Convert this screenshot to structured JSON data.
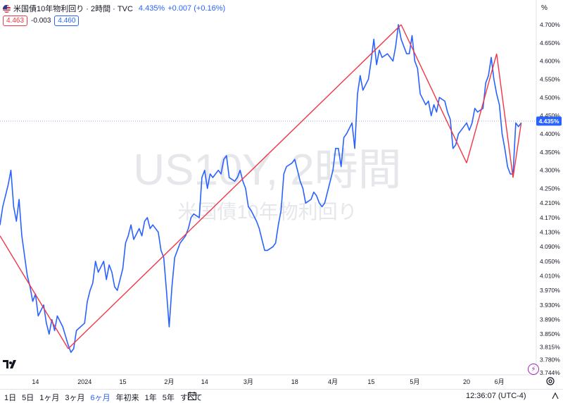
{
  "header": {
    "symbol_title": "米国債10年物利回り · 2時間 · TVC",
    "last": "4.435%",
    "change": "+0.007 (+0.16%)",
    "bid": "4.463",
    "spread": "-0.003",
    "ask": "4.460",
    "unit": "%"
  },
  "watermark": {
    "symbol": "US10Y, 2時間",
    "name": "米国債10年物利回り"
  },
  "colors": {
    "series": "#2962ff",
    "trendline": "#f23645",
    "price_tag": "#2962ff",
    "axis_text": "#131722",
    "watermark": "#e6e7ea"
  },
  "chart_data": {
    "type": "line",
    "y_ticks": [
      "4.700%",
      "4.650%",
      "4.600%",
      "4.550%",
      "4.500%",
      "4.450%",
      "4.400%",
      "4.350%",
      "4.300%",
      "4.250%",
      "4.210%",
      "4.170%",
      "4.130%",
      "4.090%",
      "4.050%",
      "4.010%",
      "3.970%",
      "3.930%",
      "3.890%",
      "3.850%",
      "3.815%",
      "3.780%",
      "3.744%"
    ],
    "y_tick_values": [
      4.7,
      4.65,
      4.6,
      4.55,
      4.5,
      4.45,
      4.4,
      4.35,
      4.3,
      4.25,
      4.21,
      4.17,
      4.13,
      4.09,
      4.05,
      4.01,
      3.97,
      3.93,
      3.89,
      3.85,
      3.815,
      3.78,
      3.744
    ],
    "x_ticks": [
      "14",
      "2024",
      "15",
      "2月",
      "14",
      "3月",
      "18",
      "4月",
      "15",
      "5月",
      "20",
      "6月"
    ],
    "x_tick_dates": [
      "2023-12-14",
      "2024-01-01",
      "2024-01-15",
      "2024-02-01",
      "2024-02-14",
      "2024-03-01",
      "2024-03-18",
      "2024-04-01",
      "2024-04-15",
      "2024-05-01",
      "2024-05-20",
      "2024-06-01"
    ],
    "x_range": [
      "2023-12-01",
      "2024-06-14"
    ],
    "current_value": 4.435,
    "current_label": "4.435%",
    "series": [
      {
        "points": [
          [
            "2023-12-01",
            4.15
          ],
          [
            "2023-12-02",
            4.2
          ],
          [
            "2023-12-04",
            4.26
          ],
          [
            "2023-12-05",
            4.3
          ],
          [
            "2023-12-06",
            4.2
          ],
          [
            "2023-12-07",
            4.16
          ],
          [
            "2023-12-08",
            4.22
          ],
          [
            "2023-12-09",
            4.12
          ],
          [
            "2023-12-11",
            4.01
          ],
          [
            "2023-12-12",
            3.98
          ],
          [
            "2023-12-13",
            3.94
          ],
          [
            "2023-12-14",
            3.96
          ],
          [
            "2023-12-15",
            3.9
          ],
          [
            "2023-12-17",
            3.93
          ],
          [
            "2023-12-18",
            3.88
          ],
          [
            "2023-12-19",
            3.85
          ],
          [
            "2023-12-20",
            3.89
          ],
          [
            "2023-12-21",
            3.86
          ],
          [
            "2023-12-22",
            3.9
          ],
          [
            "2023-12-24",
            3.87
          ],
          [
            "2023-12-26",
            3.82
          ],
          [
            "2023-12-27",
            3.8
          ],
          [
            "2023-12-28",
            3.81
          ],
          [
            "2023-12-29",
            3.86
          ],
          [
            "2024-01-01",
            3.88
          ],
          [
            "2024-01-02",
            3.94
          ],
          [
            "2024-01-03",
            3.97
          ],
          [
            "2024-01-04",
            3.99
          ],
          [
            "2024-01-05",
            4.05
          ],
          [
            "2024-01-06",
            4.02
          ],
          [
            "2024-01-08",
            4.05
          ],
          [
            "2024-01-09",
            4.0
          ],
          [
            "2024-01-10",
            4.04
          ],
          [
            "2024-01-11",
            4.02
          ],
          [
            "2024-01-12",
            3.98
          ],
          [
            "2024-01-13",
            3.97
          ],
          [
            "2024-01-15",
            4.03
          ],
          [
            "2024-01-16",
            4.1
          ],
          [
            "2024-01-17",
            4.12
          ],
          [
            "2024-01-18",
            4.15
          ],
          [
            "2024-01-19",
            4.11
          ],
          [
            "2024-01-21",
            4.14
          ],
          [
            "2024-01-22",
            4.12
          ],
          [
            "2024-01-23",
            4.16
          ],
          [
            "2024-01-24",
            4.17
          ],
          [
            "2024-01-25",
            4.14
          ],
          [
            "2024-01-26",
            4.15
          ],
          [
            "2024-01-28",
            4.13
          ],
          [
            "2024-01-29",
            4.08
          ],
          [
            "2024-01-30",
            4.06
          ],
          [
            "2024-01-31",
            3.97
          ],
          [
            "2024-02-01",
            3.87
          ],
          [
            "2024-02-02",
            3.98
          ],
          [
            "2024-02-03",
            4.06
          ],
          [
            "2024-02-05",
            4.1
          ],
          [
            "2024-02-06",
            4.11
          ],
          [
            "2024-02-07",
            4.12
          ],
          [
            "2024-02-08",
            4.14
          ],
          [
            "2024-02-09",
            4.17
          ],
          [
            "2024-02-10",
            4.18
          ],
          [
            "2024-02-12",
            4.17
          ],
          [
            "2024-02-13",
            4.28
          ],
          [
            "2024-02-14",
            4.3
          ],
          [
            "2024-02-15",
            4.25
          ],
          [
            "2024-02-16",
            4.29
          ],
          [
            "2024-02-17",
            4.28
          ],
          [
            "2024-02-19",
            4.3
          ],
          [
            "2024-02-20",
            4.29
          ],
          [
            "2024-02-21",
            4.33
          ],
          [
            "2024-02-22",
            4.34
          ],
          [
            "2024-02-23",
            4.28
          ],
          [
            "2024-02-25",
            4.27
          ],
          [
            "2024-02-26",
            4.28
          ],
          [
            "2024-02-27",
            4.3
          ],
          [
            "2024-02-28",
            4.27
          ],
          [
            "2024-02-29",
            4.25
          ],
          [
            "2024-03-01",
            4.2
          ],
          [
            "2024-03-02",
            4.19
          ],
          [
            "2024-03-04",
            4.16
          ],
          [
            "2024-03-05",
            4.14
          ],
          [
            "2024-03-06",
            4.11
          ],
          [
            "2024-03-07",
            4.08
          ],
          [
            "2024-03-08",
            4.08
          ],
          [
            "2024-03-10",
            4.09
          ],
          [
            "2024-03-11",
            4.1
          ],
          [
            "2024-03-12",
            4.15
          ],
          [
            "2024-03-13",
            4.19
          ],
          [
            "2024-03-14",
            4.29
          ],
          [
            "2024-03-15",
            4.31
          ],
          [
            "2024-03-17",
            4.32
          ],
          [
            "2024-03-18",
            4.33
          ],
          [
            "2024-03-19",
            4.3
          ],
          [
            "2024-03-20",
            4.27
          ],
          [
            "2024-03-21",
            4.25
          ],
          [
            "2024-03-22",
            4.21
          ],
          [
            "2024-03-24",
            4.22
          ],
          [
            "2024-03-25",
            4.24
          ],
          [
            "2024-03-26",
            4.23
          ],
          [
            "2024-03-27",
            4.21
          ],
          [
            "2024-03-28",
            4.2
          ],
          [
            "2024-03-29",
            4.21
          ],
          [
            "2024-04-01",
            4.3
          ],
          [
            "2024-04-02",
            4.36
          ],
          [
            "2024-04-03",
            4.36
          ],
          [
            "2024-04-04",
            4.31
          ],
          [
            "2024-04-05",
            4.39
          ],
          [
            "2024-04-06",
            4.4
          ],
          [
            "2024-04-08",
            4.43
          ],
          [
            "2024-04-09",
            4.36
          ],
          [
            "2024-04-10",
            4.51
          ],
          [
            "2024-04-11",
            4.56
          ],
          [
            "2024-04-12",
            4.52
          ],
          [
            "2024-04-14",
            4.55
          ],
          [
            "2024-04-15",
            4.6
          ],
          [
            "2024-04-16",
            4.66
          ],
          [
            "2024-04-17",
            4.59
          ],
          [
            "2024-04-18",
            4.63
          ],
          [
            "2024-04-19",
            4.61
          ],
          [
            "2024-04-21",
            4.62
          ],
          [
            "2024-04-22",
            4.61
          ],
          [
            "2024-04-23",
            4.6
          ],
          [
            "2024-04-24",
            4.64
          ],
          [
            "2024-04-25",
            4.7
          ],
          [
            "2024-04-26",
            4.66
          ],
          [
            "2024-04-28",
            4.62
          ],
          [
            "2024-04-29",
            4.62
          ],
          [
            "2024-04-30",
            4.67
          ],
          [
            "2024-05-01",
            4.6
          ],
          [
            "2024-05-02",
            4.58
          ],
          [
            "2024-05-03",
            4.51
          ],
          [
            "2024-05-05",
            4.48
          ],
          [
            "2024-05-06",
            4.49
          ],
          [
            "2024-05-07",
            4.45
          ],
          [
            "2024-05-08",
            4.48
          ],
          [
            "2024-05-09",
            4.46
          ],
          [
            "2024-05-10",
            4.5
          ],
          [
            "2024-05-12",
            4.49
          ],
          [
            "2024-05-13",
            4.46
          ],
          [
            "2024-05-14",
            4.44
          ],
          [
            "2024-05-15",
            4.36
          ],
          [
            "2024-05-16",
            4.37
          ],
          [
            "2024-05-17",
            4.4
          ],
          [
            "2024-05-19",
            4.42
          ],
          [
            "2024-05-20",
            4.43
          ],
          [
            "2024-05-21",
            4.41
          ],
          [
            "2024-05-22",
            4.43
          ],
          [
            "2024-05-23",
            4.47
          ],
          [
            "2024-05-24",
            4.46
          ],
          [
            "2024-05-26",
            4.47
          ],
          [
            "2024-05-27",
            4.54
          ],
          [
            "2024-05-28",
            4.56
          ],
          [
            "2024-05-29",
            4.61
          ],
          [
            "2024-05-30",
            4.55
          ],
          [
            "2024-05-31",
            4.51
          ],
          [
            "2024-06-01",
            4.48
          ],
          [
            "2024-06-02",
            4.4
          ],
          [
            "2024-06-03",
            4.36
          ],
          [
            "2024-06-04",
            4.31
          ],
          [
            "2024-06-05",
            4.29
          ],
          [
            "2024-06-06",
            4.29
          ],
          [
            "2024-06-07",
            4.43
          ],
          [
            "2024-06-08",
            4.42
          ],
          [
            "2024-06-09",
            4.43
          ]
        ]
      }
    ],
    "trendlines": [
      [
        [
          "2023-12-01",
          4.12
        ],
        [
          "2023-12-26",
          3.81
        ]
      ],
      [
        [
          "2023-12-26",
          3.81
        ],
        [
          "2024-04-26",
          4.7
        ]
      ],
      [
        [
          "2024-04-26",
          4.7
        ],
        [
          "2024-05-20",
          4.32
        ]
      ],
      [
        [
          "2024-05-20",
          4.32
        ],
        [
          "2024-05-31",
          4.62
        ]
      ],
      [
        [
          "2024-05-31",
          4.62
        ],
        [
          "2024-06-06",
          4.28
        ]
      ],
      [
        [
          "2024-06-06",
          4.28
        ],
        [
          "2024-06-09",
          4.43
        ]
      ]
    ]
  },
  "bottom": {
    "ranges": [
      "1日",
      "5日",
      "1ヶ月",
      "3ヶ月",
      "6ヶ月",
      "年初来",
      "1年",
      "5年",
      "すべて"
    ],
    "active_range": "6ヶ月",
    "clock": "12:36:07 (UTC-4)"
  }
}
